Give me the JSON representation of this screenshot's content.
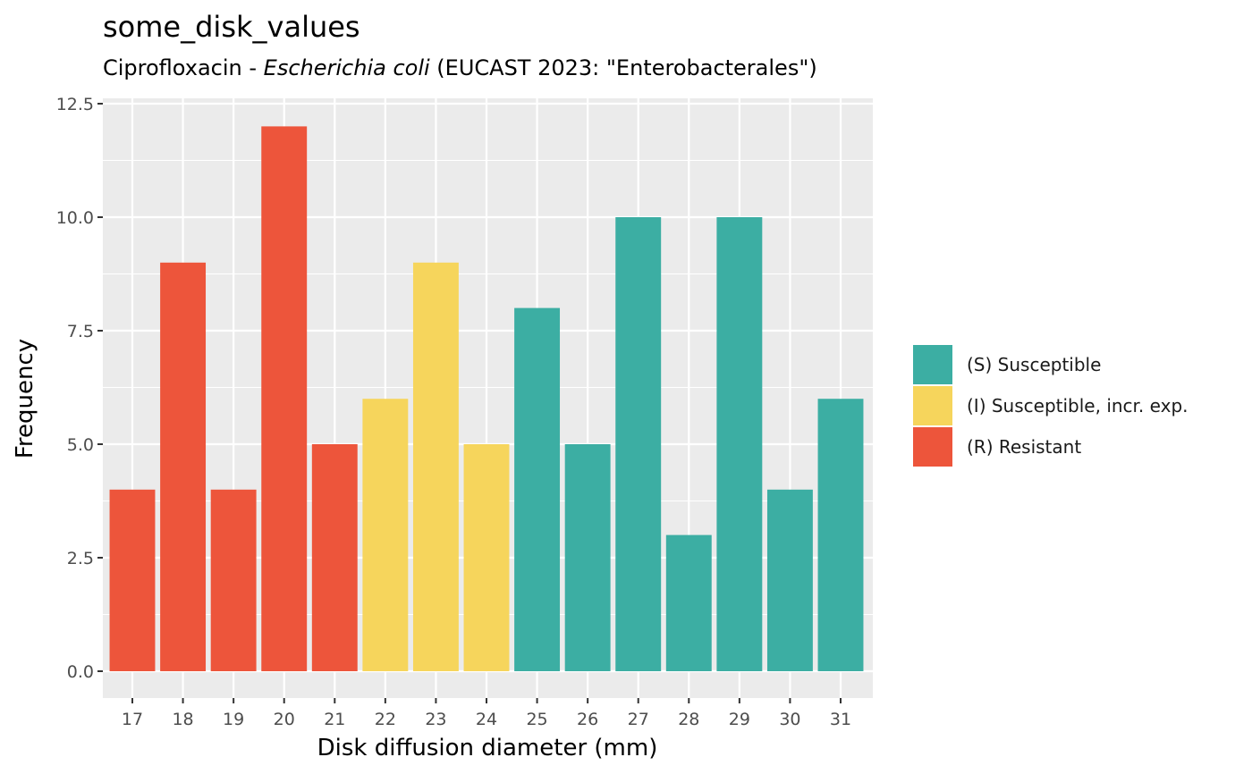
{
  "chart_data": {
    "type": "bar",
    "title": "some_disk_values",
    "subtitle": {
      "before": "Ciprofloxacin - ",
      "italic": "Escherichia coli",
      "after": " (EUCAST 2023: \"Enterobacterales\")"
    },
    "xlabel": "Disk diffusion diameter (mm)",
    "ylabel": "Frequency",
    "ylim": [
      0,
      12.5
    ],
    "yticks": [
      "0.0",
      "2.5",
      "5.0",
      "7.5",
      "10.0",
      "12.5"
    ],
    "grid": true,
    "legend_position": "right",
    "categories": [
      "17",
      "18",
      "19",
      "20",
      "21",
      "22",
      "23",
      "24",
      "25",
      "26",
      "27",
      "28",
      "29",
      "30",
      "31"
    ],
    "values": [
      4,
      9,
      4,
      12,
      5,
      6,
      9,
      5,
      8,
      5,
      10,
      3,
      10,
      4,
      6
    ],
    "interpretation": [
      "R",
      "R",
      "R",
      "R",
      "R",
      "I",
      "I",
      "I",
      "S",
      "S",
      "S",
      "S",
      "S",
      "S",
      "S"
    ],
    "legend": [
      {
        "key": "S",
        "label": "(S) Susceptible",
        "color": "#3CAEA3"
      },
      {
        "key": "I",
        "label": "(I) Susceptible, incr. exp.",
        "color": "#F6D55C"
      },
      {
        "key": "R",
        "label": "(R) Resistant",
        "color": "#ED553B"
      }
    ]
  },
  "colors": {
    "panel_background": "#EBEBEB",
    "gridline": "#FFFFFF",
    "tick_text": "#4D4D4D"
  }
}
